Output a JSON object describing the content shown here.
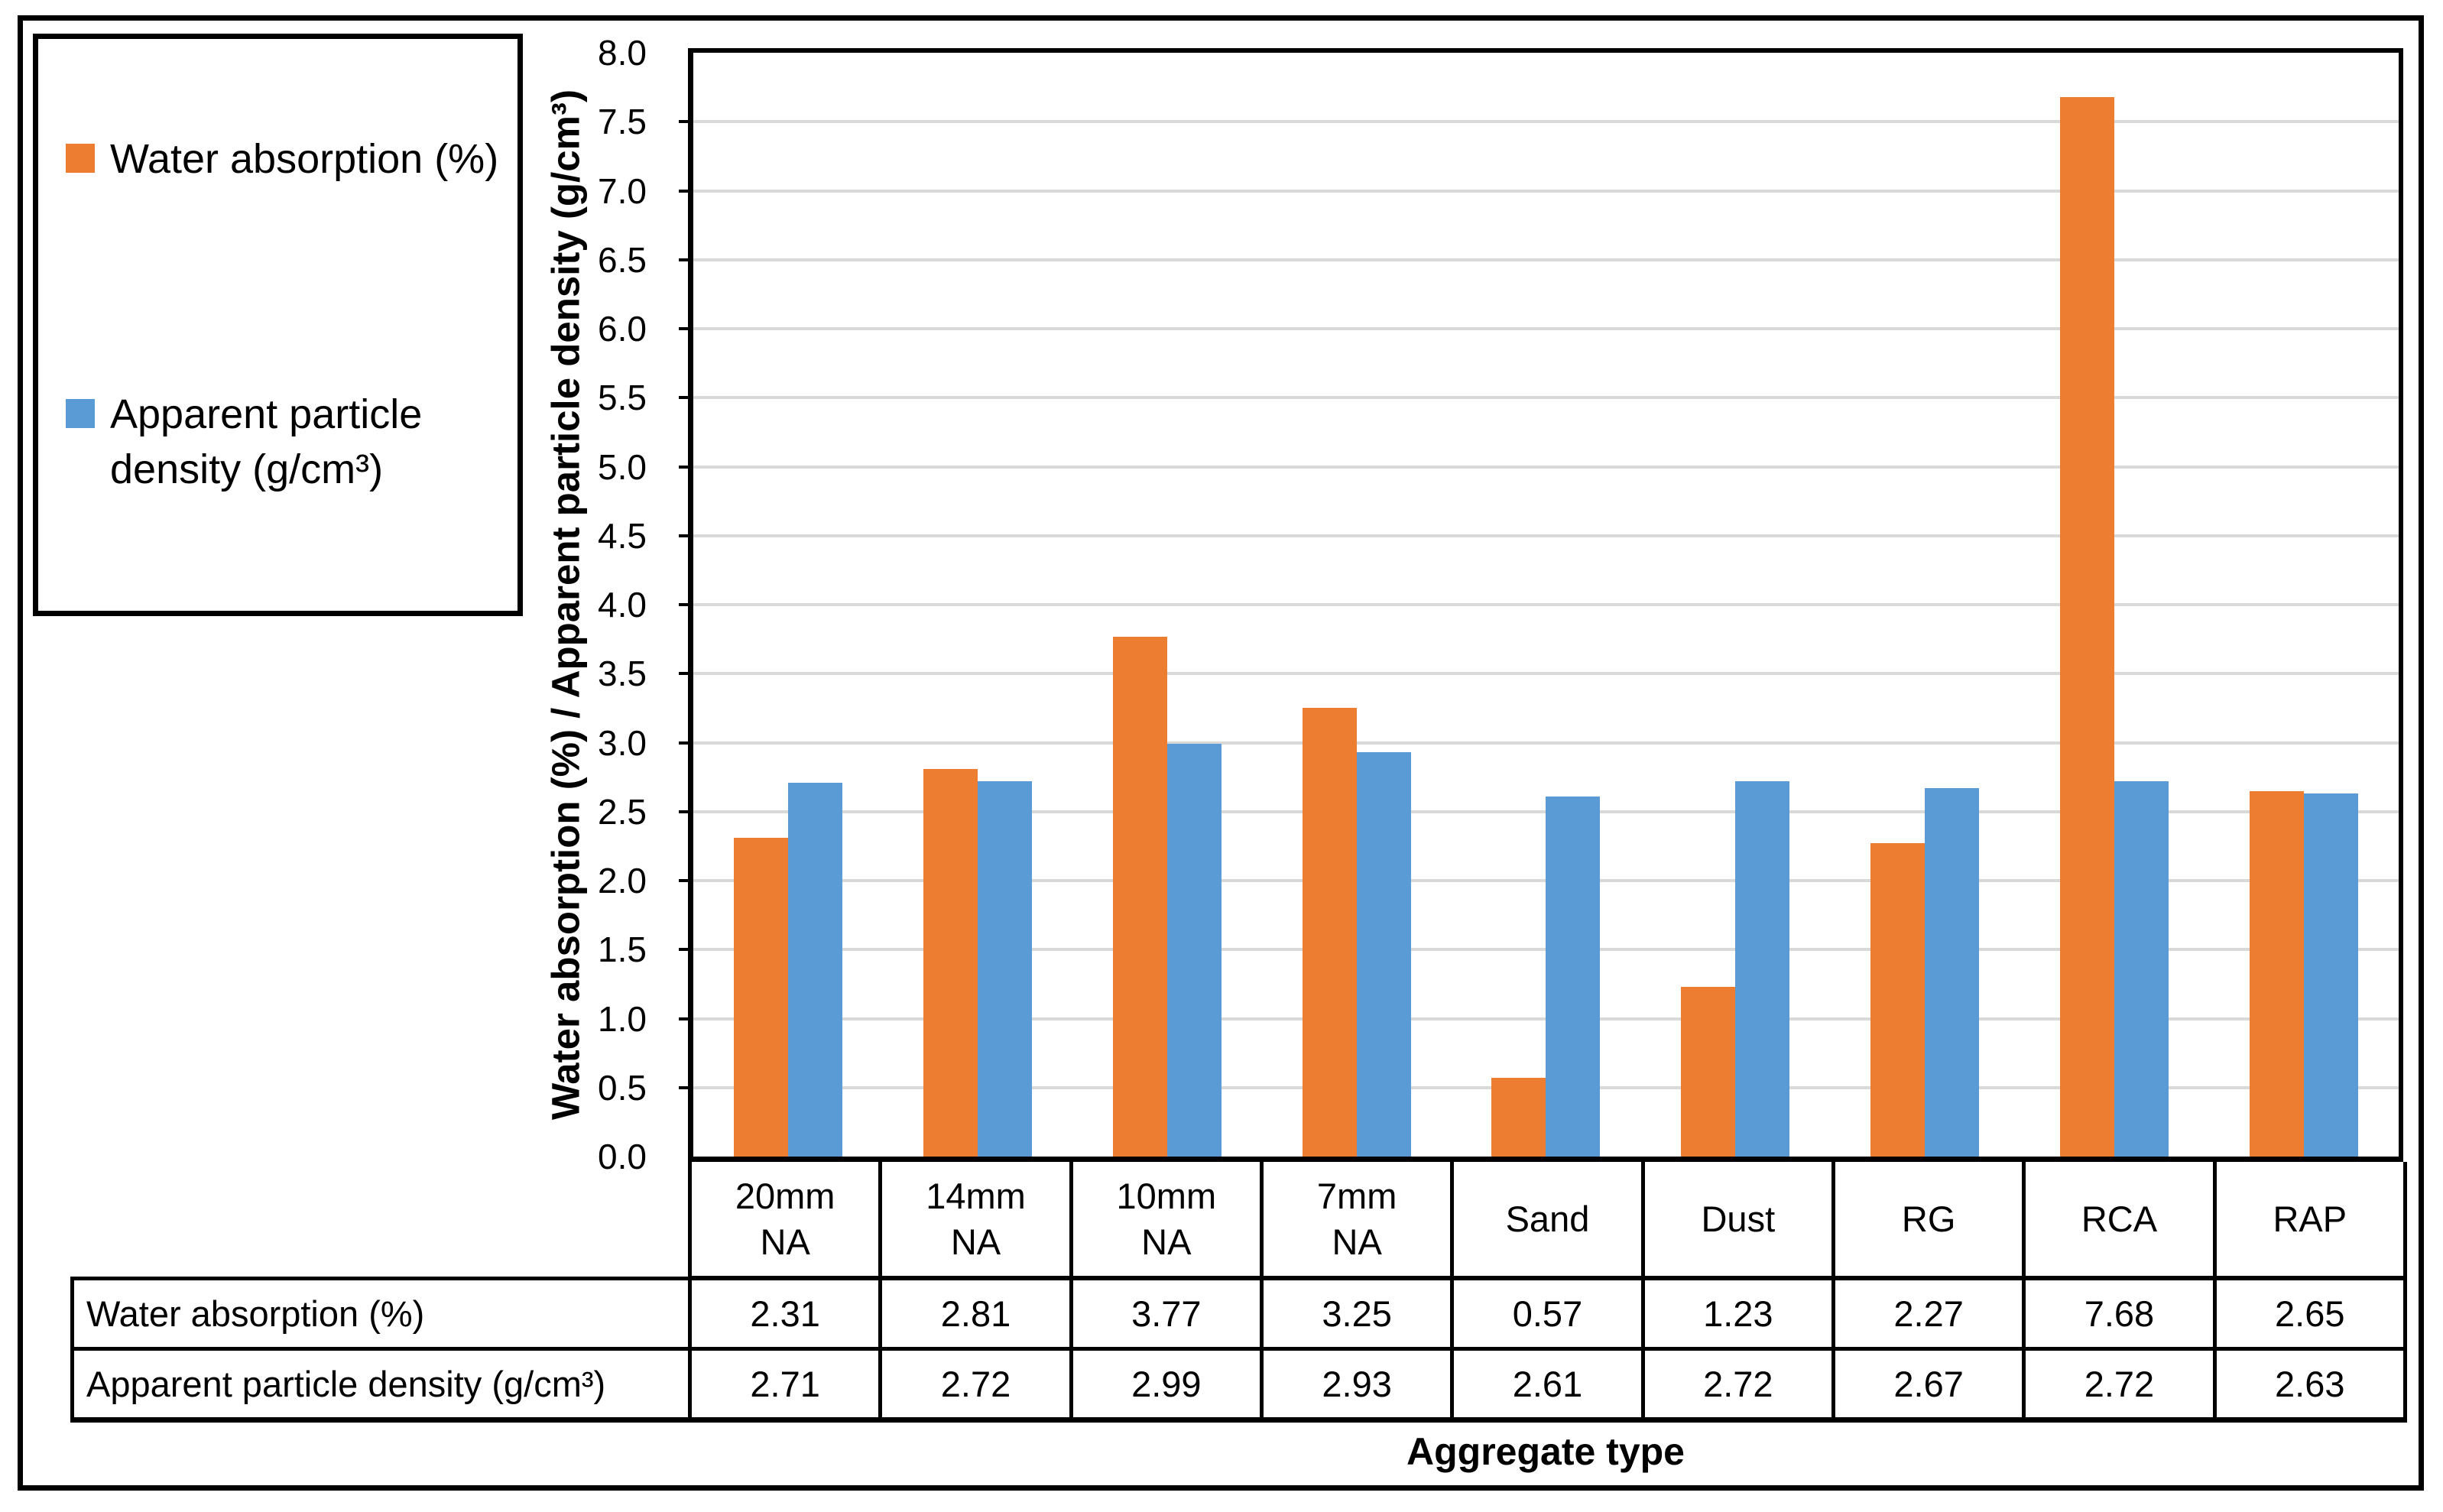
{
  "legend": {
    "items": [
      {
        "label": "Water absorption (%)",
        "color": "#ED7D31"
      },
      {
        "label": "Apparent particle\ndensity (g/cm³)",
        "color": "#5B9BD5"
      }
    ]
  },
  "chart_data": {
    "type": "bar",
    "title": "",
    "categories": [
      "20mm NA",
      "14mm NA",
      "10mm NA",
      "7mm NA",
      "Sand",
      "Dust",
      "RG",
      "RCA",
      "RAP"
    ],
    "categories_lines": [
      [
        "20mm",
        "NA"
      ],
      [
        "14mm",
        "NA"
      ],
      [
        "10mm",
        "NA"
      ],
      [
        "7mm",
        "NA"
      ],
      [
        "Sand"
      ],
      [
        "Dust"
      ],
      [
        "RG"
      ],
      [
        "RCA"
      ],
      [
        "RAP"
      ]
    ],
    "series": [
      {
        "name": "Water absorption (%)",
        "color": "#ED7D31",
        "values": [
          2.31,
          2.81,
          3.77,
          3.25,
          0.57,
          1.23,
          2.27,
          7.68,
          2.65
        ]
      },
      {
        "name": "Apparent particle density (g/cm³)",
        "color": "#5B9BD5",
        "values": [
          2.71,
          2.72,
          2.99,
          2.93,
          2.61,
          2.72,
          2.67,
          2.72,
          2.63
        ]
      }
    ],
    "xlabel": "Aggregate type",
    "ylabel": "Water absorption (%) / Apparent particle density (g/cm³)",
    "ylim": [
      0,
      8
    ],
    "ytick_step": 0.5,
    "ytick_labels": [
      "0.0",
      "0.5",
      "1.0",
      "1.5",
      "2.0",
      "2.5",
      "3.0",
      "3.5",
      "4.0",
      "4.5",
      "5.0",
      "5.5",
      "6.0",
      "6.5",
      "7.0",
      "7.5",
      "8.0"
    ],
    "grid": true,
    "gridline_color": "#D9D9D9",
    "legend_position": "top-left"
  },
  "table": {
    "row_labels": [
      "Water absorption (%)",
      "Apparent particle density (g/cm³)"
    ],
    "rows": [
      [
        "2.31",
        "2.81",
        "3.77",
        "3.25",
        "0.57",
        "1.23",
        "2.27",
        "7.68",
        "2.65"
      ],
      [
        "2.71",
        "2.72",
        "2.99",
        "2.93",
        "2.61",
        "2.72",
        "2.67",
        "2.72",
        "2.63"
      ]
    ]
  }
}
